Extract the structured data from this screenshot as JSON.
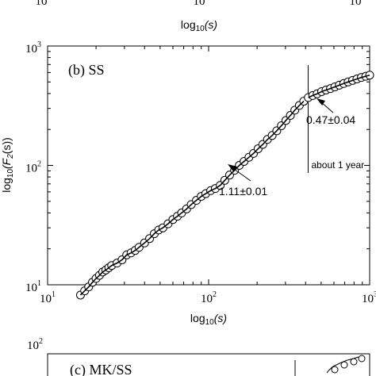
{
  "top_strip": {
    "tick_labels": [
      "10",
      "10",
      "10"
    ],
    "xlabel": "log",
    "xlabel_sub": "10",
    "xlabel_arg": "(s)"
  },
  "bottom_strip": {
    "ytick_label": "10",
    "ytick_exp": "2",
    "panel_label": "(c) MK/SS"
  },
  "chart_data": {
    "type": "scatter",
    "panel_label": "(b) SS",
    "xlabel": "log",
    "xlabel_sub": "10",
    "xlabel_arg": "(s)",
    "ylabel": "log",
    "ylabel_sub": "10",
    "ylabel_arg": "(F",
    "ylabel_sub2": "2",
    "ylabel_end": "(s))",
    "xscale": "log",
    "yscale": "log",
    "xlim": [
      10,
      1000
    ],
    "ylim": [
      10,
      1000
    ],
    "xticks": [
      {
        "value": 10,
        "base": "10",
        "exp": "1"
      },
      {
        "value": 100,
        "base": "10",
        "exp": "2"
      },
      {
        "value": 1000,
        "base": "10",
        "exp": "3"
      }
    ],
    "yticks": [
      {
        "value": 10,
        "base": "10",
        "exp": "1"
      },
      {
        "value": 100,
        "base": "10",
        "exp": "2"
      },
      {
        "value": 1000,
        "base": "10",
        "exp": "3"
      }
    ],
    "grid": false,
    "vline": {
      "x": 415,
      "label": "about 1 year"
    },
    "fits": [
      {
        "slope_label": "1.11±0.01",
        "x_range": [
          16,
          415
        ]
      },
      {
        "slope_label": "0.47±0.04",
        "x_range": [
          415,
          1000
        ]
      }
    ],
    "points": [
      {
        "x": 16,
        "y": 8.2
      },
      {
        "x": 17,
        "y": 8.9
      },
      {
        "x": 18,
        "y": 9.6
      },
      {
        "x": 19,
        "y": 10.5
      },
      {
        "x": 20,
        "y": 11.3
      },
      {
        "x": 21,
        "y": 12.0
      },
      {
        "x": 22,
        "y": 12.8
      },
      {
        "x": 23,
        "y": 13.3
      },
      {
        "x": 24,
        "y": 13.9
      },
      {
        "x": 25,
        "y": 14.5
      },
      {
        "x": 27,
        "y": 15.2
      },
      {
        "x": 29,
        "y": 16.2
      },
      {
        "x": 31,
        "y": 17.8
      },
      {
        "x": 33,
        "y": 18.5
      },
      {
        "x": 35,
        "y": 19.4
      },
      {
        "x": 37,
        "y": 20.6
      },
      {
        "x": 40,
        "y": 22.4
      },
      {
        "x": 43,
        "y": 24.4
      },
      {
        "x": 46,
        "y": 26.8
      },
      {
        "x": 49,
        "y": 28.8
      },
      {
        "x": 52,
        "y": 30.0
      },
      {
        "x": 56,
        "y": 32.4
      },
      {
        "x": 60,
        "y": 35.2
      },
      {
        "x": 64,
        "y": 37.5
      },
      {
        "x": 68,
        "y": 40.0
      },
      {
        "x": 73,
        "y": 43.2
      },
      {
        "x": 78,
        "y": 47.0
      },
      {
        "x": 84,
        "y": 51.0
      },
      {
        "x": 90,
        "y": 55.0
      },
      {
        "x": 96,
        "y": 58.0
      },
      {
        "x": 103,
        "y": 61.5
      },
      {
        "x": 110,
        "y": 64.0
      },
      {
        "x": 118,
        "y": 68.0
      },
      {
        "x": 126,
        "y": 75.0
      },
      {
        "x": 135,
        "y": 83.0
      },
      {
        "x": 145,
        "y": 91.0
      },
      {
        "x": 155,
        "y": 100.0
      },
      {
        "x": 166,
        "y": 108.0
      },
      {
        "x": 178,
        "y": 117.0
      },
      {
        "x": 190,
        "y": 126.0
      },
      {
        "x": 203,
        "y": 138.0
      },
      {
        "x": 217,
        "y": 150.0
      },
      {
        "x": 232,
        "y": 165.0
      },
      {
        "x": 248,
        "y": 178.0
      },
      {
        "x": 265,
        "y": 195.0
      },
      {
        "x": 283,
        "y": 215.0
      },
      {
        "x": 302,
        "y": 238.0
      },
      {
        "x": 322,
        "y": 262.0
      },
      {
        "x": 343,
        "y": 290.0
      },
      {
        "x": 366,
        "y": 318.0
      },
      {
        "x": 390,
        "y": 345.0
      },
      {
        "x": 416,
        "y": 370.0
      },
      {
        "x": 443,
        "y": 385.0
      },
      {
        "x": 472,
        "y": 398.0
      },
      {
        "x": 503,
        "y": 415.0
      },
      {
        "x": 536,
        "y": 428.0
      },
      {
        "x": 571,
        "y": 440.0
      },
      {
        "x": 608,
        "y": 455.0
      },
      {
        "x": 648,
        "y": 470.0
      },
      {
        "x": 690,
        "y": 485.0
      },
      {
        "x": 735,
        "y": 500.0
      },
      {
        "x": 783,
        "y": 515.0
      },
      {
        "x": 834,
        "y": 530.0
      },
      {
        "x": 888,
        "y": 545.0
      },
      {
        "x": 946,
        "y": 558.0
      },
      {
        "x": 1000,
        "y": 570.0
      }
    ]
  }
}
